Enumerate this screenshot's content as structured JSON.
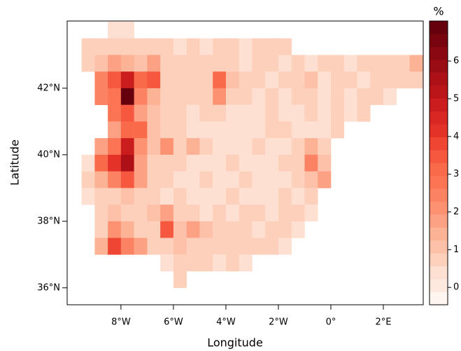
{
  "chart_data": {
    "type": "heatmap",
    "x_label": "Longitude",
    "y_label": "Latitude",
    "xlim": [
      -10.05,
      3.52
    ],
    "ylim": [
      35.49,
      44.02
    ],
    "xticks": [
      {
        "value": -8,
        "label": "8°W"
      },
      {
        "value": -6,
        "label": "6°W"
      },
      {
        "value": -4,
        "label": "4°W"
      },
      {
        "value": -2,
        "label": "2°W"
      },
      {
        "value": 0,
        "label": "0°"
      },
      {
        "value": 2,
        "label": "2°E"
      }
    ],
    "yticks": [
      {
        "value": 36,
        "label": "36°N"
      },
      {
        "value": 38,
        "label": "38°N"
      },
      {
        "value": 40,
        "label": "40°N"
      },
      {
        "value": 42,
        "label": "42°N"
      }
    ],
    "x": [
      -9.25,
      -8.75,
      -8.25,
      -7.75,
      -7.25,
      -6.75,
      -6.25,
      -5.75,
      -5.25,
      -4.75,
      -4.25,
      -3.75,
      -3.25,
      -2.75,
      -2.25,
      -1.75,
      -1.25,
      -0.75,
      -0.25,
      0.25,
      0.75,
      1.25,
      1.75,
      2.25,
      2.75,
      3.25
    ],
    "y": [
      43.75,
      43.25,
      42.75,
      42.25,
      41.75,
      41.25,
      40.75,
      40.25,
      39.75,
      39.25,
      38.75,
      38.25,
      37.75,
      37.25,
      36.75,
      36.25
    ],
    "z": [
      [
        null,
        null,
        0.4,
        0.5,
        null,
        null,
        null,
        null,
        null,
        null,
        null,
        null,
        null,
        null,
        null,
        null,
        null,
        null,
        null,
        null,
        null,
        null,
        null,
        null,
        null,
        null
      ],
      [
        0.8,
        0.9,
        0.8,
        0.7,
        0.9,
        0.6,
        0.8,
        0.5,
        0.6,
        0.5,
        0.7,
        0.6,
        0.5,
        0.6,
        0.8,
        0.6,
        null,
        null,
        null,
        null,
        null,
        null,
        null,
        null,
        null,
        null
      ],
      [
        0.7,
        1.2,
        1.6,
        1.4,
        1.0,
        1.8,
        0.8,
        0.9,
        0.6,
        0.7,
        0.9,
        0.6,
        0.5,
        0.6,
        0.7,
        0.5,
        0.6,
        0.5,
        0.7,
        0.6,
        0.5,
        0.6,
        0.9,
        0.7,
        0.6,
        1.4
      ],
      [
        null,
        2.6,
        3.4,
        5.0,
        3.2,
        3.6,
        0.9,
        0.8,
        0.7,
        0.6,
        3.2,
        1.2,
        0.7,
        0.6,
        0.5,
        0.7,
        0.6,
        1.0,
        0.5,
        0.6,
        0.7,
        0.5,
        0.6,
        0.8,
        0.9,
        0.6
      ],
      [
        null,
        2.4,
        2.8,
        6.8,
        2.5,
        1.4,
        0.8,
        0.7,
        0.9,
        0.6,
        2.2,
        0.8,
        0.6,
        0.5,
        0.6,
        0.5,
        0.7,
        0.6,
        0.5,
        0.6,
        0.4,
        0.6,
        0.7,
        0.5,
        null,
        null
      ],
      [
        null,
        null,
        2.9,
        3.4,
        1.6,
        1.0,
        0.7,
        0.6,
        0.5,
        0.6,
        0.7,
        0.5,
        0.4,
        0.5,
        0.6,
        0.5,
        0.4,
        0.6,
        0.5,
        0.6,
        0.5,
        0.6,
        null,
        null,
        null,
        null
      ],
      [
        null,
        null,
        1.8,
        3.0,
        3.2,
        1.2,
        0.8,
        0.6,
        0.5,
        0.4,
        0.5,
        0.4,
        0.5,
        0.4,
        0.6,
        0.8,
        0.5,
        0.4,
        0.5,
        0.6,
        null,
        null,
        null,
        null,
        null,
        null
      ],
      [
        null,
        1.6,
        2.8,
        4.8,
        2.2,
        1.0,
        2.0,
        0.7,
        1.4,
        0.6,
        0.5,
        0.4,
        0.5,
        0.6,
        0.5,
        0.4,
        0.6,
        1.3,
        0.7,
        null,
        null,
        null,
        null,
        null,
        null,
        null
      ],
      [
        0.5,
        3.0,
        4.2,
        5.6,
        1.8,
        0.8,
        0.7,
        0.6,
        0.5,
        0.4,
        0.5,
        0.6,
        0.5,
        0.4,
        0.5,
        0.6,
        0.9,
        2.4,
        1.2,
        null,
        null,
        null,
        null,
        null,
        null,
        null
      ],
      [
        0.6,
        1.4,
        2.6,
        3.6,
        1.6,
        0.9,
        0.6,
        0.5,
        0.4,
        0.6,
        0.5,
        0.4,
        0.6,
        0.5,
        0.4,
        0.5,
        0.6,
        1.1,
        1.8,
        null,
        null,
        null,
        null,
        null,
        null,
        null
      ],
      [
        0.5,
        0.8,
        0.9,
        1.0,
        0.7,
        0.6,
        0.5,
        0.6,
        0.5,
        0.4,
        0.5,
        0.6,
        0.5,
        0.4,
        0.5,
        0.6,
        0.5,
        0.6,
        null,
        null,
        null,
        null,
        null,
        null,
        null,
        null
      ],
      [
        null,
        0.7,
        1.0,
        0.8,
        0.9,
        1.2,
        1.8,
        0.7,
        0.6,
        0.5,
        0.6,
        0.5,
        0.7,
        0.6,
        0.5,
        0.8,
        0.6,
        0.5,
        null,
        null,
        null,
        null,
        null,
        null,
        null,
        null
      ],
      [
        null,
        0.9,
        2.2,
        1.4,
        0.8,
        0.7,
        3.4,
        1.0,
        1.6,
        1.2,
        0.8,
        0.6,
        0.7,
        0.5,
        0.9,
        0.6,
        0.5,
        null,
        null,
        null,
        null,
        null,
        null,
        null,
        null,
        null
      ],
      [
        null,
        1.4,
        3.8,
        2.4,
        1.8,
        0.7,
        0.8,
        1.0,
        0.9,
        0.7,
        0.6,
        0.8,
        0.6,
        0.7,
        0.6,
        0.5,
        null,
        null,
        null,
        null,
        null,
        null,
        null,
        null,
        null,
        null
      ],
      [
        null,
        null,
        null,
        null,
        null,
        null,
        0.5,
        0.7,
        0.6,
        0.8,
        0.5,
        0.6,
        0.5,
        null,
        null,
        null,
        null,
        null,
        null,
        null,
        null,
        null,
        null,
        null,
        null,
        null
      ],
      [
        null,
        null,
        null,
        null,
        null,
        null,
        null,
        0.6,
        null,
        null,
        null,
        null,
        null,
        null,
        null,
        null,
        null,
        null,
        null,
        null,
        null,
        null,
        null,
        null,
        null,
        null
      ]
    ],
    "colorbar": {
      "title": "%",
      "lim": [
        -0.46,
        7.06
      ],
      "ticks": [
        0,
        1,
        2,
        3,
        4,
        5,
        6
      ],
      "colors": [
        "#fff5f0",
        "#fee9df",
        "#fee0d2",
        "#fdd0bc",
        "#fcc1a8",
        "#fcb295",
        "#fca183",
        "#fc9272",
        "#fb8363",
        "#fb7555",
        "#f96a4a",
        "#f5573f",
        "#ef4533",
        "#e53228",
        "#d92723",
        "#cb1d1e",
        "#bb1419",
        "#ad1117",
        "#9b0d14",
        "#8a0812",
        "#77040f",
        "#67000d"
      ]
    }
  }
}
